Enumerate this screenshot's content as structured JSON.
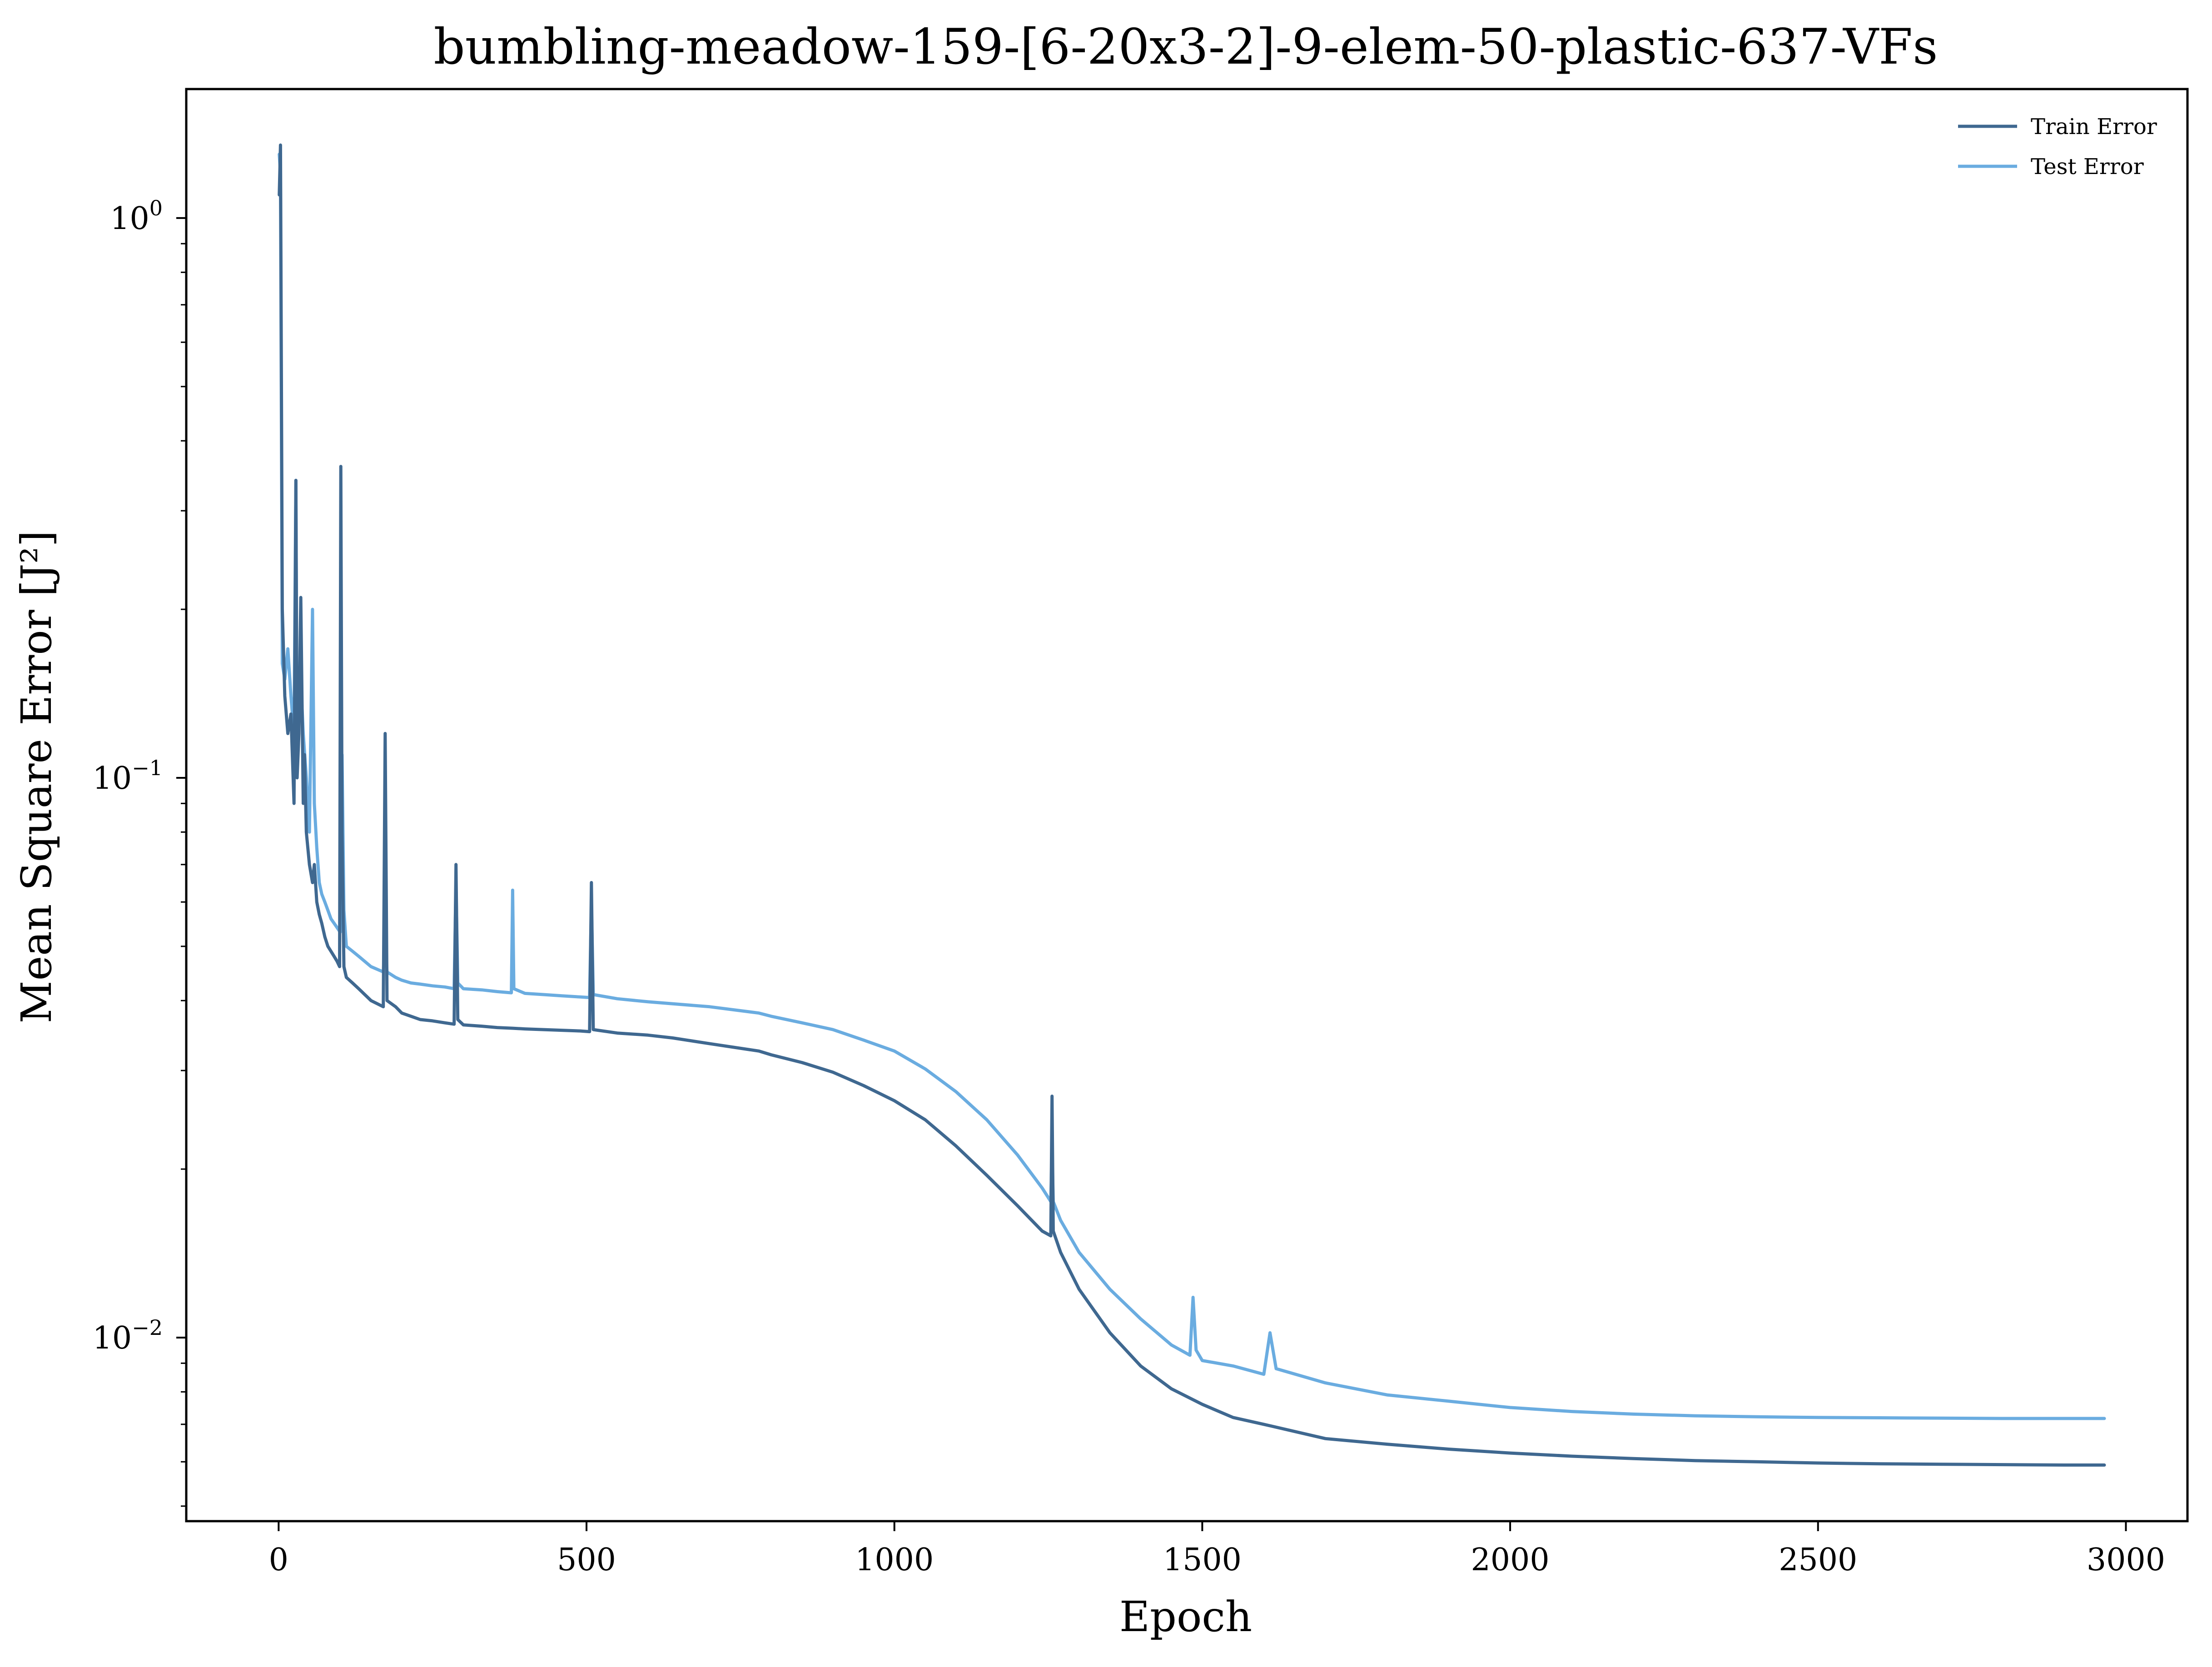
{
  "chart_data": {
    "type": "line",
    "title": "bumbling-meadow-159-[6-20x3-2]-9-elem-50-plastic-637-VFs",
    "xlabel": "Epoch",
    "ylabel": "Mean Square Error [J²]",
    "yscale": "log",
    "xlim": [
      -150,
      3100
    ],
    "ylim": [
      0.0047,
      1.7
    ],
    "xticks": [
      0,
      500,
      1000,
      1500,
      2000,
      2500,
      3000
    ],
    "yticks": [
      {
        "value": 1,
        "base": "10",
        "exp": "0"
      },
      {
        "value": 0.1,
        "base": "10",
        "exp": "−1"
      },
      {
        "value": 0.01,
        "base": "10",
        "exp": "−2"
      }
    ],
    "grid": false,
    "legend": "top-right",
    "series": [
      {
        "name": "Train Error",
        "color": "#3f6890",
        "x": [
          1,
          3,
          6,
          10,
          15,
          20,
          25,
          28,
          30,
          33,
          36,
          40,
          42,
          45,
          50,
          55,
          58,
          62,
          66,
          70,
          75,
          80,
          85,
          90,
          95,
          99,
          101,
          103,
          106,
          110,
          120,
          130,
          150,
          170,
          173,
          176,
          190,
          200,
          215,
          230,
          250,
          270,
          285,
          288,
          291,
          300,
          330,
          355,
          380,
          400,
          430,
          460,
          490,
          505,
          508,
          511,
          550,
          600,
          640,
          700,
          780,
          800,
          850,
          900,
          950,
          1000,
          1050,
          1100,
          1150,
          1200,
          1240,
          1254,
          1256,
          1258,
          1270,
          1300,
          1350,
          1400,
          1450,
          1500,
          1550,
          1600,
          1700,
          1800,
          1900,
          2000,
          2100,
          2200,
          2300,
          2400,
          2500,
          2600,
          2700,
          2800,
          2900,
          2965
        ],
        "y": [
          1.1,
          1.35,
          0.2,
          0.14,
          0.12,
          0.13,
          0.09,
          0.34,
          0.1,
          0.12,
          0.21,
          0.09,
          0.11,
          0.08,
          0.07,
          0.065,
          0.07,
          0.06,
          0.057,
          0.055,
          0.052,
          0.05,
          0.049,
          0.048,
          0.047,
          0.046,
          0.36,
          0.08,
          0.046,
          0.044,
          0.043,
          0.042,
          0.04,
          0.039,
          0.12,
          0.04,
          0.039,
          0.038,
          0.0375,
          0.037,
          0.0368,
          0.0365,
          0.0363,
          0.07,
          0.037,
          0.0362,
          0.036,
          0.0358,
          0.0357,
          0.0356,
          0.0355,
          0.0354,
          0.0353,
          0.0352,
          0.065,
          0.0355,
          0.035,
          0.0347,
          0.0343,
          0.0335,
          0.0325,
          0.032,
          0.031,
          0.0298,
          0.0282,
          0.0265,
          0.0245,
          0.022,
          0.0195,
          0.0172,
          0.0155,
          0.0152,
          0.027,
          0.0155,
          0.0142,
          0.0122,
          0.0102,
          0.0089,
          0.0081,
          0.0076,
          0.0072,
          0.007,
          0.0066,
          0.00645,
          0.00632,
          0.00622,
          0.00614,
          0.00608,
          0.00603,
          0.006,
          0.00597,
          0.00595,
          0.00594,
          0.00593,
          0.00592,
          0.00592
        ]
      },
      {
        "name": "Test Error",
        "color": "#6aace0",
        "x": [
          1,
          3,
          6,
          10,
          15,
          20,
          25,
          28,
          30,
          33,
          36,
          40,
          45,
          50,
          55,
          58,
          62,
          66,
          70,
          75,
          80,
          85,
          90,
          95,
          100,
          103,
          106,
          110,
          120,
          130,
          150,
          170,
          173,
          176,
          190,
          200,
          215,
          230,
          250,
          270,
          285,
          288,
          291,
          300,
          330,
          355,
          378,
          380,
          382,
          400,
          430,
          460,
          490,
          505,
          508,
          511,
          550,
          600,
          700,
          780,
          800,
          850,
          900,
          950,
          1000,
          1050,
          1100,
          1150,
          1200,
          1240,
          1254,
          1256,
          1258,
          1270,
          1300,
          1350,
          1400,
          1450,
          1480,
          1485,
          1490,
          1500,
          1550,
          1600,
          1610,
          1620,
          1700,
          1800,
          1900,
          2000,
          2100,
          2200,
          2300,
          2400,
          2500,
          2600,
          2700,
          2800,
          2900,
          2965
        ],
        "y": [
          1.3,
          1.2,
          0.16,
          0.15,
          0.17,
          0.14,
          0.12,
          0.34,
          0.11,
          0.13,
          0.15,
          0.12,
          0.1,
          0.08,
          0.2,
          0.09,
          0.075,
          0.065,
          0.062,
          0.06,
          0.058,
          0.056,
          0.055,
          0.054,
          0.053,
          0.11,
          0.058,
          0.05,
          0.049,
          0.048,
          0.046,
          0.045,
          0.052,
          0.045,
          0.044,
          0.0435,
          0.043,
          0.0428,
          0.0425,
          0.0423,
          0.042,
          0.065,
          0.043,
          0.042,
          0.0418,
          0.0415,
          0.0413,
          0.063,
          0.042,
          0.0412,
          0.041,
          0.0408,
          0.0406,
          0.0405,
          0.06,
          0.041,
          0.0403,
          0.0398,
          0.039,
          0.038,
          0.0375,
          0.0365,
          0.0355,
          0.034,
          0.0325,
          0.0302,
          0.0275,
          0.0245,
          0.0212,
          0.0185,
          0.0175,
          0.022,
          0.0175,
          0.0162,
          0.0142,
          0.0122,
          0.0108,
          0.0097,
          0.0093,
          0.0118,
          0.0095,
          0.0091,
          0.0089,
          0.0086,
          0.0102,
          0.0088,
          0.0083,
          0.0079,
          0.0077,
          0.0075,
          0.00738,
          0.0073,
          0.00725,
          0.00722,
          0.0072,
          0.00719,
          0.00718,
          0.00717,
          0.00717,
          0.00717
        ]
      }
    ]
  }
}
